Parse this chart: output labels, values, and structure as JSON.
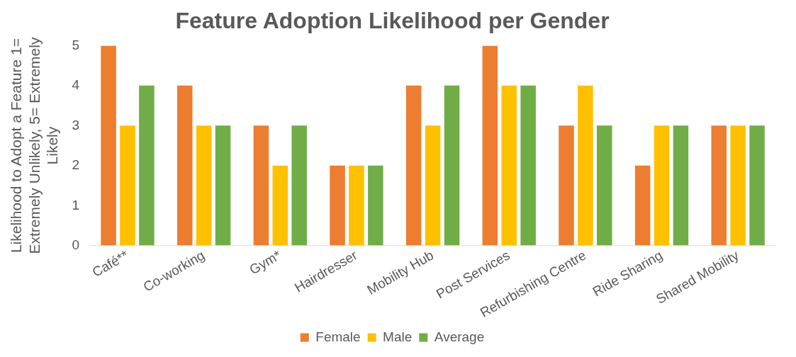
{
  "chart_data": {
    "type": "bar",
    "title": "Feature Adoption Likelihood per Gender",
    "ylabel": "Likelihood to Adopt a Feature 1= Extremely Unlikely, 5= Extremely Likely",
    "categories": [
      "Café**",
      "Co-working",
      "Gym*",
      "Hairdresser",
      "Mobility Hub",
      "Post Services",
      "Refurbishing Centre",
      "Ride Sharing",
      "Shared Mobility"
    ],
    "series": [
      {
        "name": "Female",
        "color": "#ed7d31",
        "values": [
          5,
          4,
          3,
          2,
          4,
          5,
          3,
          2,
          3
        ]
      },
      {
        "name": "Male",
        "color": "#ffc000",
        "values": [
          3,
          3,
          2,
          2,
          3,
          4,
          4,
          3,
          3
        ]
      },
      {
        "name": "Average",
        "color": "#70ad47",
        "values": [
          4,
          3,
          3,
          2,
          4,
          4,
          3,
          3,
          3
        ]
      }
    ],
    "ylim": [
      0,
      5
    ],
    "yticks": [
      0,
      1,
      2,
      3,
      4,
      5
    ],
    "grid": false,
    "legend": "bottom"
  }
}
